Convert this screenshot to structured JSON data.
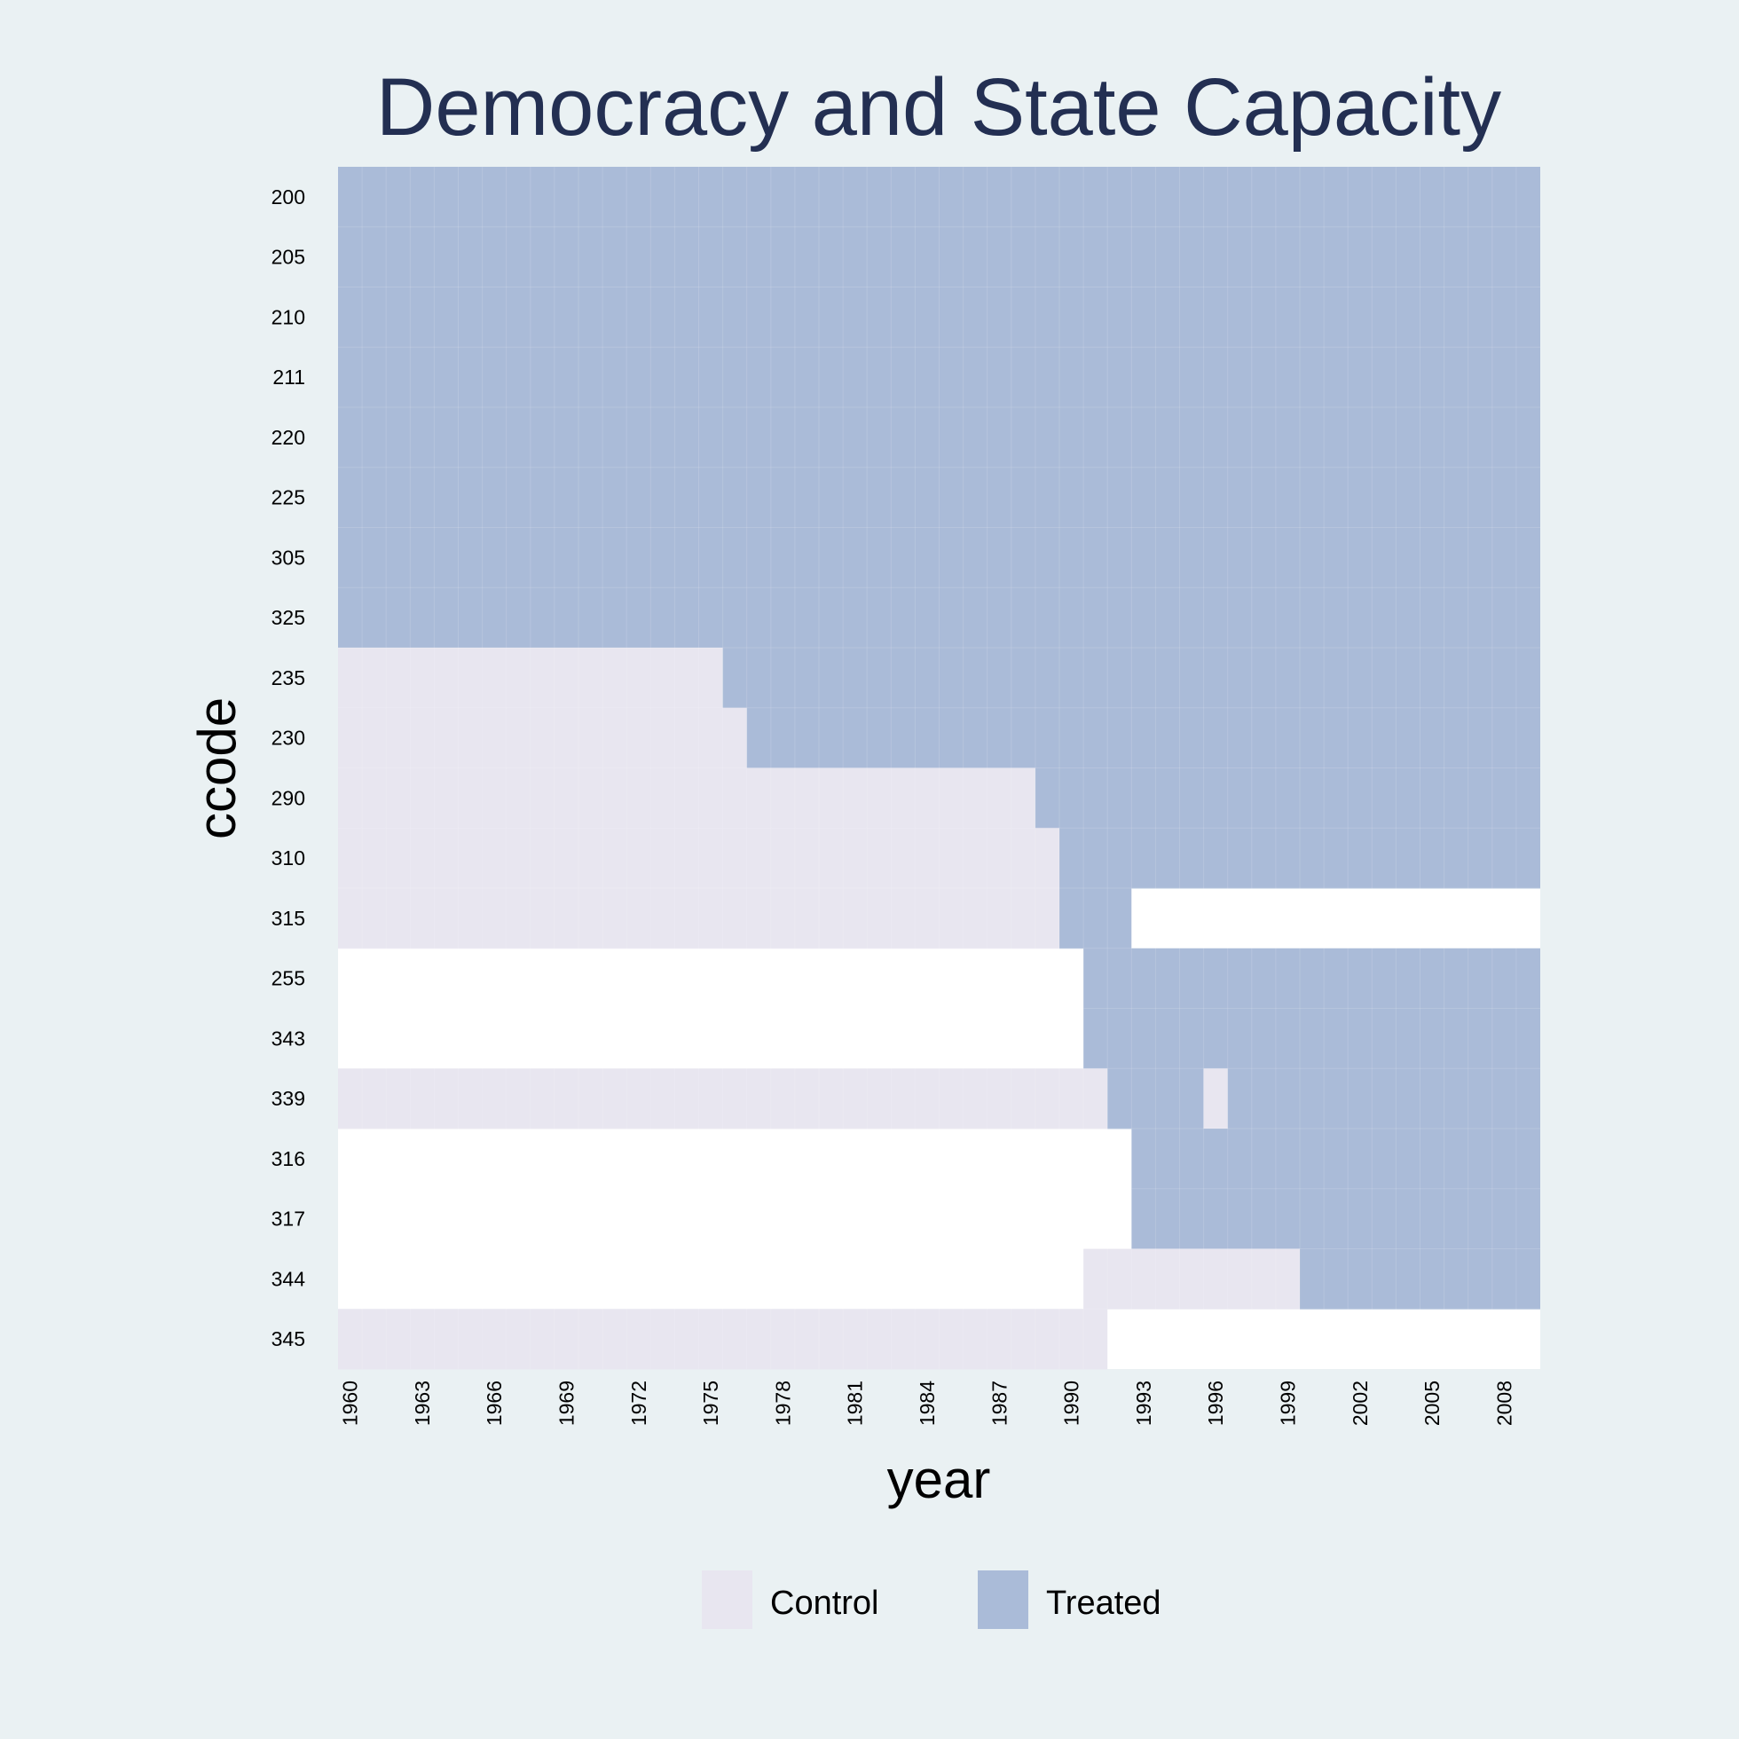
{
  "chart_data": {
    "type": "heatmap",
    "title": "Democracy and State Capacity",
    "xlabel": "year",
    "ylabel": "ccode",
    "x_start": 1960,
    "x_end": 2009,
    "x_ticks": [
      1960,
      1963,
      1966,
      1969,
      1972,
      1975,
      1978,
      1981,
      1984,
      1987,
      1990,
      1993,
      1996,
      1999,
      2002,
      2005,
      2008
    ],
    "colors": {
      "Control": "#e8e6f0",
      "Treated": "#aabbd8",
      "missing": "#ffffff"
    },
    "legend": {
      "position": "bottom",
      "items": [
        "Control",
        "Treated"
      ]
    },
    "rows": [
      {
        "ccode": "200",
        "segments": [
          {
            "from": 1960,
            "to": 2009,
            "status": "Treated"
          }
        ]
      },
      {
        "ccode": "205",
        "segments": [
          {
            "from": 1960,
            "to": 2009,
            "status": "Treated"
          }
        ]
      },
      {
        "ccode": "210",
        "segments": [
          {
            "from": 1960,
            "to": 2009,
            "status": "Treated"
          }
        ]
      },
      {
        "ccode": "211",
        "segments": [
          {
            "from": 1960,
            "to": 2009,
            "status": "Treated"
          }
        ]
      },
      {
        "ccode": "220",
        "segments": [
          {
            "from": 1960,
            "to": 2009,
            "status": "Treated"
          }
        ]
      },
      {
        "ccode": "225",
        "segments": [
          {
            "from": 1960,
            "to": 2009,
            "status": "Treated"
          }
        ]
      },
      {
        "ccode": "305",
        "segments": [
          {
            "from": 1960,
            "to": 2009,
            "status": "Treated"
          }
        ]
      },
      {
        "ccode": "325",
        "segments": [
          {
            "from": 1960,
            "to": 2009,
            "status": "Treated"
          }
        ]
      },
      {
        "ccode": "235",
        "segments": [
          {
            "from": 1960,
            "to": 1975,
            "status": "Control"
          },
          {
            "from": 1976,
            "to": 2009,
            "status": "Treated"
          }
        ]
      },
      {
        "ccode": "230",
        "segments": [
          {
            "from": 1960,
            "to": 1976,
            "status": "Control"
          },
          {
            "from": 1977,
            "to": 2009,
            "status": "Treated"
          }
        ]
      },
      {
        "ccode": "290",
        "segments": [
          {
            "from": 1960,
            "to": 1988,
            "status": "Control"
          },
          {
            "from": 1989,
            "to": 2009,
            "status": "Treated"
          }
        ]
      },
      {
        "ccode": "310",
        "segments": [
          {
            "from": 1960,
            "to": 1989,
            "status": "Control"
          },
          {
            "from": 1990,
            "to": 2009,
            "status": "Treated"
          }
        ]
      },
      {
        "ccode": "315",
        "segments": [
          {
            "from": 1960,
            "to": 1989,
            "status": "Control"
          },
          {
            "from": 1990,
            "to": 1992,
            "status": "Treated"
          }
        ]
      },
      {
        "ccode": "255",
        "segments": [
          {
            "from": 1991,
            "to": 2009,
            "status": "Treated"
          }
        ]
      },
      {
        "ccode": "343",
        "segments": [
          {
            "from": 1991,
            "to": 2009,
            "status": "Treated"
          }
        ]
      },
      {
        "ccode": "339",
        "segments": [
          {
            "from": 1960,
            "to": 1991,
            "status": "Control"
          },
          {
            "from": 1992,
            "to": 1995,
            "status": "Treated"
          },
          {
            "from": 1996,
            "to": 1996,
            "status": "Control"
          },
          {
            "from": 1997,
            "to": 2009,
            "status": "Treated"
          }
        ]
      },
      {
        "ccode": "316",
        "segments": [
          {
            "from": 1993,
            "to": 2009,
            "status": "Treated"
          }
        ]
      },
      {
        "ccode": "317",
        "segments": [
          {
            "from": 1993,
            "to": 2009,
            "status": "Treated"
          }
        ]
      },
      {
        "ccode": "344",
        "segments": [
          {
            "from": 1991,
            "to": 1999,
            "status": "Control"
          },
          {
            "from": 2000,
            "to": 2009,
            "status": "Treated"
          }
        ]
      },
      {
        "ccode": "345",
        "segments": [
          {
            "from": 1960,
            "to": 1991,
            "status": "Control"
          }
        ]
      }
    ]
  }
}
